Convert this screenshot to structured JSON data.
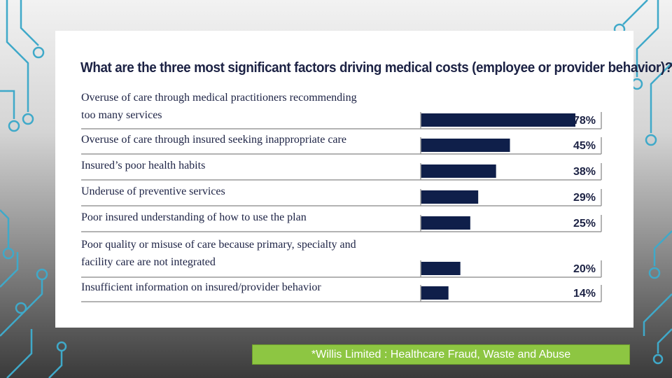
{
  "chart_data": {
    "type": "bar",
    "title": "What are the three most significant factors driving medical costs (employee or provider behavior)?",
    "orientation": "horizontal",
    "xlim": [
      0,
      100
    ],
    "bar_color": "#0f1f4a",
    "rows": [
      {
        "lines": [
          "Overuse of care through medical practitioners recommending",
          "too many services"
        ],
        "value": 78,
        "value_label": "78%"
      },
      {
        "lines": [
          "Overuse of care through insured seeking inappropriate care"
        ],
        "value": 45,
        "value_label": "45%"
      },
      {
        "lines": [
          "Insured’s poor health habits"
        ],
        "value": 38,
        "value_label": "38%"
      },
      {
        "lines": [
          "Underuse of preventive services"
        ],
        "value": 29,
        "value_label": "29%"
      },
      {
        "lines": [
          "Poor insured understanding of how to use the plan"
        ],
        "value": 25,
        "value_label": "25%"
      },
      {
        "lines": [
          "Poor quality or misuse of care because primary, specialty and",
          "facility care are not integrated"
        ],
        "value": 20,
        "value_label": "20%"
      },
      {
        "lines": [
          "Insufficient information on insured/provider behavior"
        ],
        "value": 14,
        "value_label": "14%"
      }
    ]
  },
  "source_note": "*Willis Limited : Healthcare Fraud, Waste and Abuse",
  "colors": {
    "accent": "#8dc642",
    "circuit": "#3fa9c9",
    "text": "#1c2244"
  }
}
